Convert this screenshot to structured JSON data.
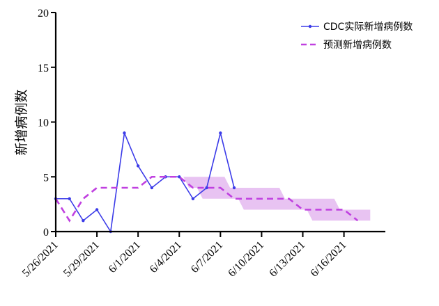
{
  "chart_data": {
    "type": "line",
    "ylabel": "新增病例数",
    "xlabel": "",
    "ylim": [
      0,
      20
    ],
    "yticks": [
      0,
      5,
      10,
      15,
      20
    ],
    "x_start": "5/26/2021",
    "x_end": "6/18/2021",
    "xticks": [
      "5/26/2021",
      "5/29/2021",
      "6/1/2021",
      "6/4/2021",
      "6/7/2021",
      "6/10/2021",
      "6/13/2021",
      "6/16/2021"
    ],
    "legend_position": "top-right",
    "series": [
      {
        "name": "CDC实际新增病例数",
        "style": "solid-line-dots",
        "color": "#3b3be8",
        "x": [
          "5/26/2021",
          "5/27/2021",
          "5/28/2021",
          "5/29/2021",
          "5/30/2021",
          "5/31/2021",
          "6/1/2021",
          "6/2/2021",
          "6/3/2021",
          "6/4/2021",
          "6/5/2021",
          "6/6/2021",
          "6/7/2021",
          "6/8/2021"
        ],
        "values": [
          3,
          3,
          1,
          2,
          0,
          9,
          6,
          4,
          5,
          5,
          3,
          4,
          9,
          4
        ]
      },
      {
        "name": "预测新增病例数",
        "style": "dashed-line",
        "color": "#c040e0",
        "x": [
          "5/26/2021",
          "5/27/2021",
          "5/28/2021",
          "5/29/2021",
          "5/30/2021",
          "5/31/2021",
          "6/1/2021",
          "6/2/2021",
          "6/3/2021",
          "6/4/2021",
          "6/5/2021",
          "6/6/2021",
          "6/7/2021",
          "6/8/2021",
          "6/9/2021",
          "6/10/2021",
          "6/11/2021",
          "6/12/2021",
          "6/13/2021",
          "6/14/2021",
          "6/15/2021",
          "6/16/2021",
          "6/17/2021"
        ],
        "values": [
          3,
          1,
          3,
          4,
          4,
          4,
          4,
          5,
          5,
          5,
          4,
          4,
          4,
          3,
          3,
          3,
          3,
          3,
          2,
          2,
          2,
          2,
          1
        ],
        "band": {
          "color": "#e4b8f0",
          "x": [
            "6/3/2021",
            "6/4/2021",
            "6/5/2021",
            "6/6/2021",
            "6/7/2021",
            "6/8/2021",
            "6/9/2021",
            "6/10/2021",
            "6/11/2021",
            "6/12/2021",
            "6/13/2021",
            "6/14/2021",
            "6/15/2021",
            "6/16/2021",
            "6/17/2021"
          ],
          "lower": [
            5,
            5,
            4,
            3,
            3,
            3,
            2,
            2,
            2,
            2,
            2,
            1,
            1,
            1,
            1
          ],
          "upper": [
            5,
            5,
            5,
            5,
            5,
            4,
            4,
            4,
            4,
            3,
            3,
            3,
            3,
            2,
            2
          ]
        }
      }
    ]
  }
}
